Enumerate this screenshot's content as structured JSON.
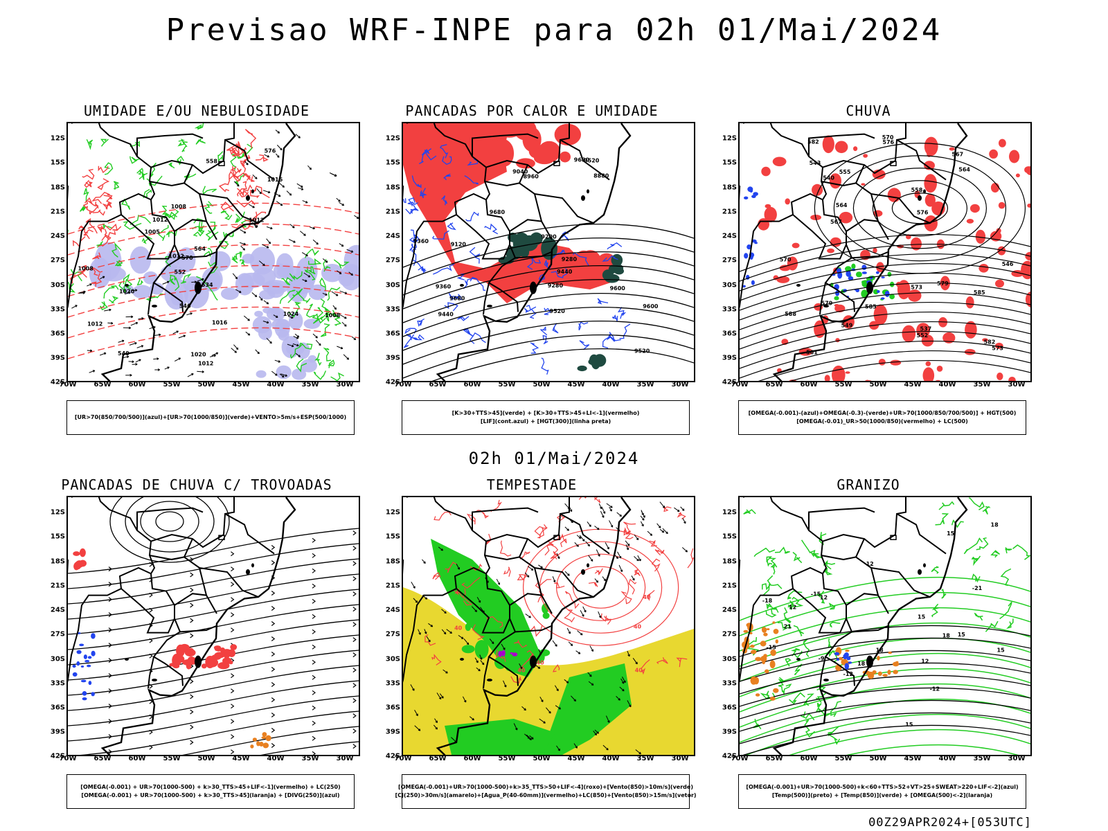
{
  "header": {
    "title": "Previsao WRF-INPE  para 02h 01/Mai/2024",
    "mid_time": "02h 01/Mai/2024",
    "footer": "00Z29APR2024+[053UTC]"
  },
  "axes": {
    "lat_labels": [
      "12S",
      "15S",
      "18S",
      "21S",
      "24S",
      "27S",
      "30S",
      "33S",
      "36S",
      "39S",
      "42S"
    ],
    "lon_labels": [
      "70W",
      "65W",
      "60W",
      "55W",
      "50W",
      "45W",
      "40W",
      "35W",
      "30W"
    ]
  },
  "colors": {
    "red": "#f24040",
    "green": "#22cc22",
    "blue": "#2244ee",
    "lavender": "#b8b8ee",
    "darkteal": "#1f4a40",
    "yellow": "#e8d830",
    "orange": "#e88020",
    "black": "#000000"
  },
  "panels": [
    {
      "title": "UMIDADE E/OU NEBULOSIDADE",
      "legend": [
        "[UR>70(850/700/500)](azul)+[UR>70(1000/850)](verde)+VENTO>5m/s+ESP(500/1000)"
      ],
      "contour_labels": [
        "1012",
        "1012",
        "1016",
        "1020",
        "1016",
        "1008",
        "1012",
        "1012",
        "1008",
        "1012",
        "1024",
        "1020",
        "1008",
        "1005",
        "576",
        "564",
        "552",
        "546",
        "540",
        "534",
        "558",
        "570"
      ]
    },
    {
      "title": "PANCADAS POR CALOR E UMIDADE",
      "legend": [
        "[K>30+TTS>45](verde) + [K>30+TTS>45+LI<-1](vermelho)",
        "[LIF](cont.azul) + [HGT(300)](linha preta)"
      ],
      "contour_labels": [
        "9680",
        "9680",
        "9680",
        "9600",
        "9520",
        "9440",
        "9360",
        "9280",
        "9200",
        "9120",
        "9040",
        "8960",
        "8880",
        "9600",
        "9520",
        "9440",
        "9360",
        "9280",
        "9520"
      ]
    },
    {
      "title": "CHUVA",
      "legend": [
        "[OMEGA(-0.001)-(azul)+OMEGA(-0.3)-(verde)+UR>70(1000/850/700/500)] + HGT(500)",
        "[OMEGA(-0.01)_UR>50(1000/850)(vermelho) + LC(500)"
      ],
      "contour_labels": [
        "585",
        "588",
        "585",
        "582",
        "579",
        "576",
        "573",
        "570",
        "567",
        "564",
        "561",
        "558",
        "555",
        "552",
        "549",
        "546",
        "543",
        "540",
        "537",
        "582",
        "579",
        "576",
        "573",
        "570",
        "567",
        "564"
      ]
    },
    {
      "title": "PANCADAS DE CHUVA C/ TROVOADAS",
      "legend": [
        "[OMEGA(-0.001) + UR>70(1000-500) + k>30_TTS>45+LIF<-1](vermelho) + LC(250)",
        "[OMEGA(-0.001) + UR>70(1000-500) + k>30_TTS>45](laranja) + [DIVG(250)](azul)"
      ],
      "contour_labels": []
    },
    {
      "title": "TEMPESTADE",
      "legend": [
        "[OMEGA(-0.001)+UR>70(1000-500)+k>35_TTS>50+LIF<-4](roxo)+[Vento(850)>10m/s](verde)",
        "[CJ(250)>30m/s](amarelo)+[Agua_P(40-60mm)](vermelho)+LC(850)+[Vento(850)>15m/s](vetor)"
      ],
      "contour_labels": [
        "40",
        "40",
        "40",
        "40",
        "40",
        "40"
      ]
    },
    {
      "title": "GRANIZO",
      "legend": [
        "[OMEGA(-0.001)+UR>70(1000-500)+k<60+TTS>52+VT>25+SWEAT>220+LIF<-2](azul)",
        "[Temp(500)](preto) + [Temp(850)](verde) + [OMEGA(500)<-2](laranja)"
      ],
      "contour_labels": [
        "15",
        "15",
        "18",
        "18",
        "15",
        "12",
        "12",
        "12",
        "12",
        "15",
        "15",
        "18",
        "18",
        "21",
        "-12",
        "-15",
        "-18",
        "-21",
        "-12",
        "-15",
        "-9"
      ]
    }
  ]
}
